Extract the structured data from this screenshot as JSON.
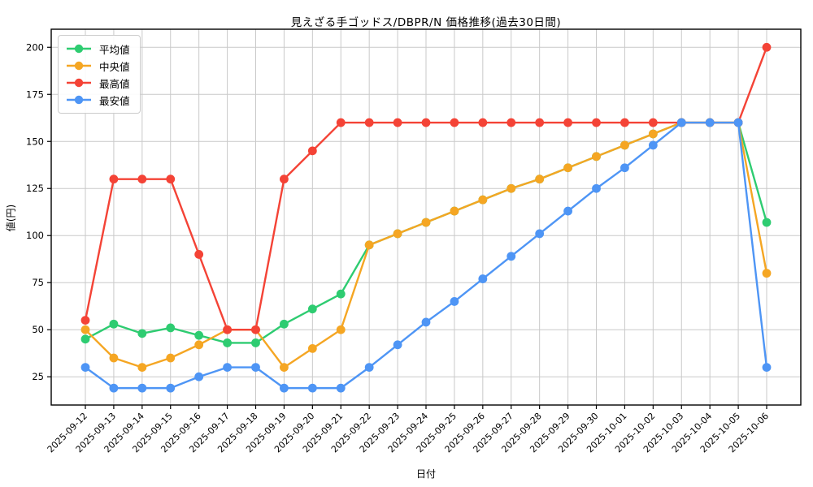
{
  "chart_data": {
    "type": "line",
    "title": "見えざる手ゴッドス/DBPR/N 価格推移(過去30日間)",
    "xlabel": "日付",
    "ylabel": "値(円)",
    "x": [
      "2025-09-12",
      "2025-09-13",
      "2025-09-14",
      "2025-09-15",
      "2025-09-16",
      "2025-09-17",
      "2025-09-18",
      "2025-09-19",
      "2025-09-20",
      "2025-09-21",
      "2025-09-22",
      "2025-09-23",
      "2025-09-24",
      "2025-09-25",
      "2025-09-26",
      "2025-09-27",
      "2025-09-28",
      "2025-09-29",
      "2025-09-30",
      "2025-10-01",
      "2025-10-02",
      "2025-10-03",
      "2025-10-04",
      "2025-10-05",
      "2025-10-06"
    ],
    "series": [
      {
        "name": "平均値",
        "color": "#2ecc71",
        "values": [
          45,
          53,
          48,
          51,
          47,
          43,
          43,
          53,
          61,
          69,
          95,
          101,
          107,
          113,
          119,
          125,
          130,
          136,
          142,
          148,
          154,
          160,
          160,
          160,
          107
        ]
      },
      {
        "name": "中央値",
        "color": "#f5a623",
        "values": [
          50,
          35,
          30,
          35,
          42,
          50,
          50,
          30,
          40,
          50,
          95,
          101,
          107,
          113,
          119,
          125,
          130,
          136,
          142,
          148,
          154,
          160,
          160,
          160,
          80
        ]
      },
      {
        "name": "最高値",
        "color": "#f44336",
        "values": [
          55,
          130,
          130,
          130,
          90,
          50,
          50,
          130,
          145,
          160,
          160,
          160,
          160,
          160,
          160,
          160,
          160,
          160,
          160,
          160,
          160,
          160,
          160,
          160,
          200
        ]
      },
      {
        "name": "最安値",
        "color": "#4e95f5",
        "values": [
          30,
          19,
          19,
          19,
          25,
          30,
          30,
          19,
          19,
          19,
          30,
          42,
          54,
          65,
          77,
          89,
          101,
          113,
          125,
          136,
          148,
          160,
          160,
          160,
          30
        ]
      }
    ],
    "yticks": [
      25,
      50,
      75,
      100,
      125,
      150,
      175,
      200
    ],
    "ylim": [
      10,
      209.6
    ],
    "grid": true,
    "legend_position": "upper-left",
    "marker": "circle",
    "colors": {
      "grid": "#c9c9c9",
      "axis": "#000000",
      "tick_label": "#000000",
      "background": "#ffffff"
    }
  }
}
